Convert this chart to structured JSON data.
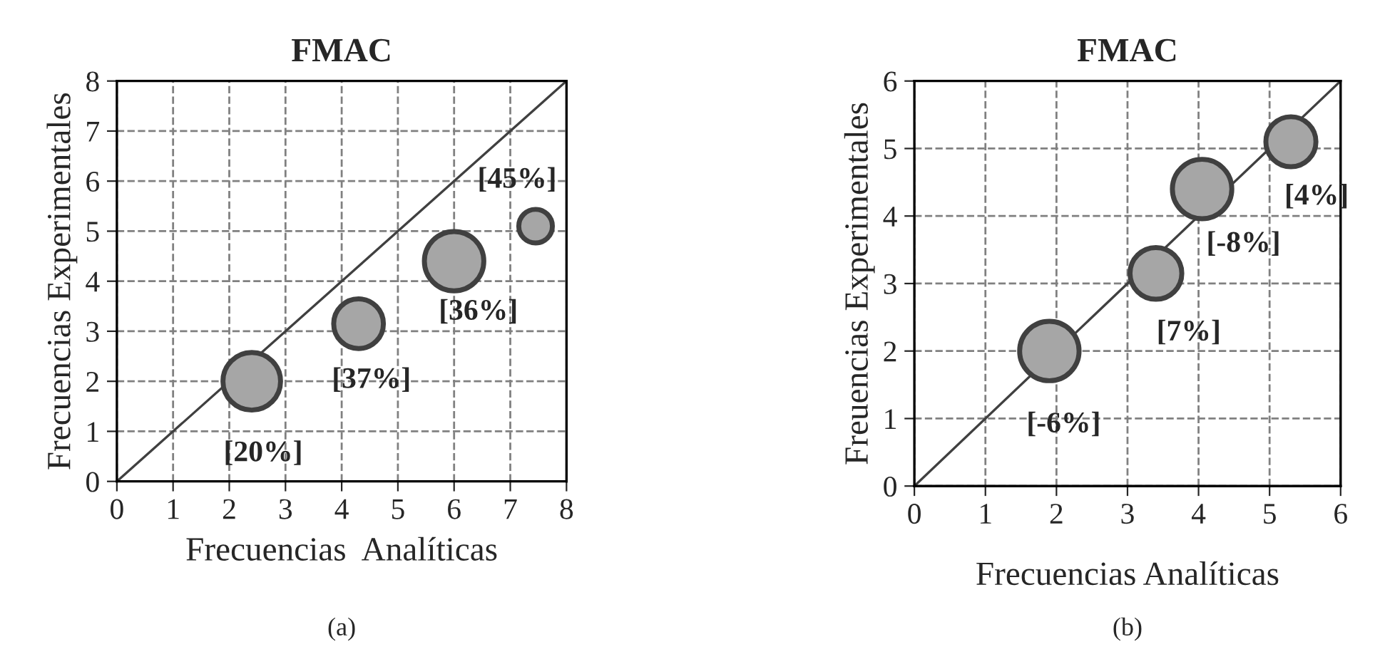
{
  "chart_data": [
    {
      "type": "bubble",
      "title": "FMAC",
      "xlabel": "Frecuencias  Analíticas",
      "ylabel": "Frecuencias Experimentales",
      "xlim": [
        0,
        8
      ],
      "ylim": [
        0,
        8
      ],
      "xticks": [
        0,
        1,
        2,
        3,
        4,
        5,
        6,
        7,
        8
      ],
      "yticks": [
        0,
        1,
        2,
        3,
        4,
        5,
        6,
        7,
        8
      ],
      "grid": true,
      "series": [
        {
          "color": "#a6a6a6",
          "x": [
            2.4,
            4.3,
            6.0,
            7.45
          ],
          "values": [
            2.0,
            3.15,
            4.4,
            5.1
          ],
          "sizes": [
            0.94,
            0.7,
            1,
            0.32
          ]
        },
        {
          "type": "line",
          "color": "#404040",
          "x": [
            0,
            8
          ],
          "values": [
            0,
            8
          ]
        }
      ],
      "annotations": [
        {
          "text": "[20%]",
          "x": 2.4,
          "y": 2.0
        },
        {
          "text": "[37%]",
          "x": 4.3,
          "y": 3.15
        },
        {
          "text": "[36%]",
          "x": 6.0,
          "y": 4.4
        },
        {
          "text": "[45%]",
          "x": 7.45,
          "y": 5.1
        },
        "(a)"
      ]
    },
    {
      "type": "bubble",
      "title": "FMAC",
      "xlabel": "Frecuencias Analíticas",
      "ylabel": "Freuencias Experimentales",
      "xlim": [
        0,
        6
      ],
      "ylim": [
        0,
        6
      ],
      "xticks": [
        0,
        1,
        2,
        3,
        4,
        5,
        6
      ],
      "yticks": [
        0,
        1,
        2,
        3,
        4,
        5,
        6
      ],
      "grid": true,
      "series": [
        {
          "color": "#a6a6a6",
          "x": [
            1.9,
            3.4,
            4.05,
            5.3
          ],
          "values": [
            2.0,
            3.15,
            4.4,
            5.1
          ],
          "sizes": [
            1,
            0.76,
            1,
            0.71
          ]
        },
        {
          "type": "line",
          "color": "#404040",
          "x": [
            0,
            6
          ],
          "values": [
            0,
            6
          ]
        }
      ],
      "annotations": [
        {
          "text": "[-6%]",
          "x": 1.9,
          "y": 2.0
        },
        {
          "text": "[7%]",
          "x": 3.4,
          "y": 3.15
        },
        {
          "text": "[-8%]",
          "x": 4.05,
          "y": 4.4
        },
        {
          "text": "[4%]",
          "x": 5.3,
          "y": 5.1
        },
        "(b)"
      ]
    }
  ]
}
